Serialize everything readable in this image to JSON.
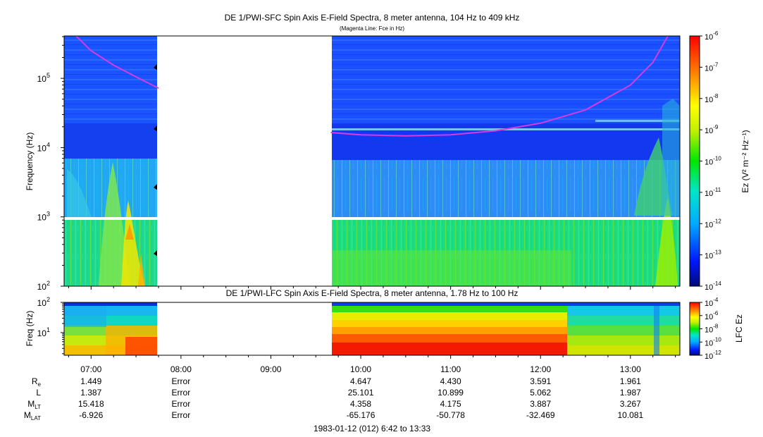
{
  "chart_data": [
    {
      "type": "heatmap",
      "title": "DE 1/PWI-SFC  Spin Axis E-Field Spectra, 8 meter antenna, 104 Hz to 409 kHz",
      "subtitle": "(Magenta Line: Fce in Hz)",
      "ylabel": "Frequency (Hz)",
      "yscale": "log",
      "ylim": [
        100,
        409000
      ],
      "yticks": [
        100,
        1000,
        10000,
        100000
      ],
      "ytick_labels": [
        [
          "10",
          "2"
        ],
        [
          "10",
          "3"
        ],
        [
          "10",
          "4"
        ],
        [
          "10",
          "5"
        ]
      ],
      "data_gap_x": [
        "07:45",
        "09:40"
      ],
      "colorbar": {
        "label": "Ez (V² m⁻² Hz⁻¹)",
        "scale": "log",
        "range": [
          1e-14,
          1e-06
        ],
        "tick_exponents": [
          "-6",
          "-7",
          "-8",
          "-9",
          "-10",
          "-11",
          "-12",
          "-13",
          "-14"
        ]
      },
      "fce_line": {
        "color": "#d63be0",
        "segments": [
          {
            "x": [
              "06:50",
              "07:00",
              "07:15",
              "07:30",
              "07:45"
            ],
            "y": [
              409000,
              250000,
              155000,
              105000,
              72000
            ]
          },
          {
            "x": [
              "09:40",
              "10:00",
              "10:30",
              "11:00",
              "11:30",
              "12:00",
              "12:30",
              "13:00",
              "13:15",
              "13:25"
            ],
            "y": [
              16500,
              15300,
              14800,
              15300,
              17500,
              22500,
              35000,
              80000,
              170000,
              409000
            ]
          }
        ]
      }
    },
    {
      "type": "heatmap",
      "title": "DE 1/PWI-LFC  Spin Axis E-Field Spectra, 8 meter antenna, 1.78 Hz to 100 Hz",
      "ylabel": "Freq (Hz)",
      "yscale": "log",
      "ylim": [
        1.78,
        100
      ],
      "yticks": [
        10,
        100
      ],
      "ytick_labels": [
        [
          "10",
          "1"
        ],
        [
          "10",
          "2"
        ]
      ],
      "data_gap_x": [
        "07:45",
        "09:40"
      ],
      "colorbar": {
        "label": "LFC Ez",
        "scale": "log",
        "range": [
          1e-12,
          0.0001
        ],
        "tick_exponents": [
          "-4",
          "-6",
          "-8",
          "-10",
          "-12"
        ]
      }
    }
  ],
  "x_axis": {
    "xlim": [
      "06:42",
      "13:33"
    ],
    "ticks": [
      "07:00",
      "08:00",
      "09:00",
      "10:00",
      "11:00",
      "12:00",
      "13:00"
    ],
    "caption": "1983-01-12 (012) 6:42 to 13:33"
  },
  "ephemeris": {
    "rows": [
      {
        "label": "R",
        "sub": "e",
        "values": [
          "1.449",
          "Error",
          "",
          "4.647",
          "4.430",
          "3.591",
          "1.961"
        ]
      },
      {
        "label": "L",
        "sub": "",
        "values": [
          "1.387",
          "Error",
          "",
          "25.101",
          "10.899",
          "5.062",
          "1.987"
        ]
      },
      {
        "label": "M",
        "sub": "LT",
        "values": [
          "15.418",
          "Error",
          "",
          "4.358",
          "4.175",
          "3.887",
          "3.267"
        ]
      },
      {
        "label": "M",
        "sub": "LAT",
        "values": [
          "-6.926",
          "Error",
          "",
          "-65.176",
          "-50.778",
          "-32.469",
          "10.081"
        ]
      }
    ]
  }
}
